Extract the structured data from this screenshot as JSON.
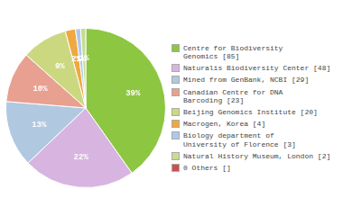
{
  "chart_data": {
    "type": "pie",
    "categories": [
      "Centre for Biodiversity\nGenomics [85]",
      "Naturalis Biodiversity Center [48]",
      "Mined from GenBank, NCBI [29]",
      "Canadian Centre for DNA\nBarcoding [23]",
      "Beijing Genomics Institute [20]",
      "Macrogen, Korea [4]",
      "Biology department of\nUniversity of Florence [3]",
      "Natural History Museum, London [2]",
      "0 Others []"
    ],
    "values": [
      39,
      22,
      13,
      10,
      9,
      2,
      1,
      1,
      0
    ],
    "value_labels": [
      "39%",
      "22%",
      "13%",
      "10%",
      "9%",
      "2%",
      "1%",
      "1%",
      null
    ],
    "colors": [
      "#8dc641",
      "#d8b4e0",
      "#b0c8e0",
      "#e8a090",
      "#ccd880",
      "#f0a840",
      "#b0c8e8",
      "#c8dc90",
      "#cc5050"
    ],
    "data_labels": true,
    "legend": "right"
  }
}
